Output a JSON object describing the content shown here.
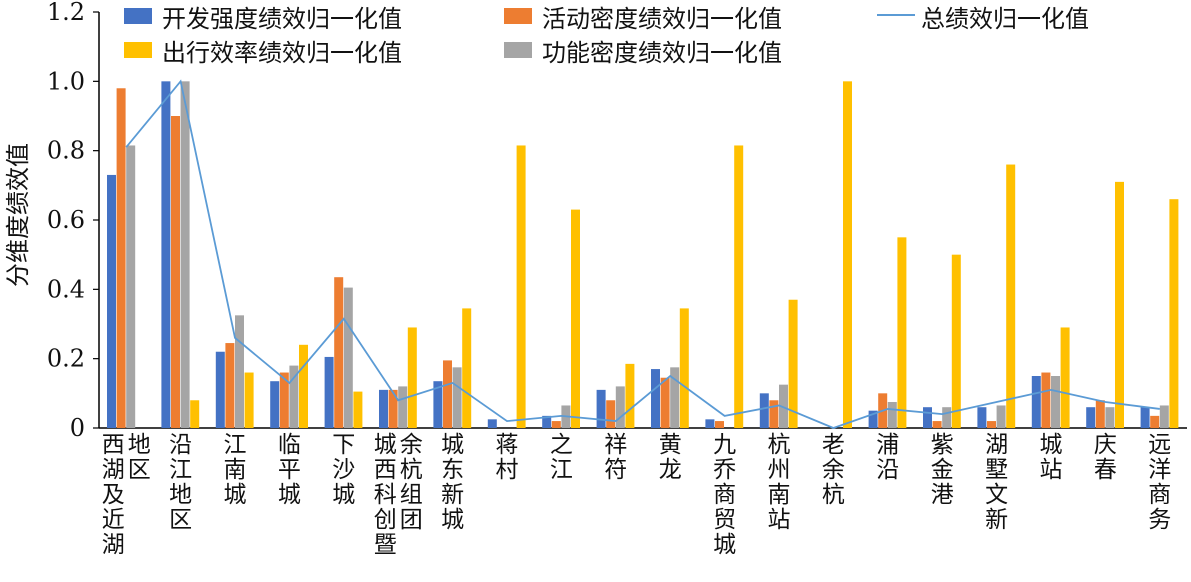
{
  "chart_data": {
    "type": "bar",
    "title": "",
    "xlabel": "",
    "ylabel": "分维度绩效值",
    "ylim": [
      0,
      1.2
    ],
    "yticks": [
      "0",
      "0.2",
      "0.4",
      "0.6",
      "0.8",
      "1.0",
      "1.2"
    ],
    "grid": false,
    "legend_position": "top",
    "categories": [
      "西湖及近湖地区",
      "沿江地区",
      "江南城",
      "临平城",
      "下沙城",
      "城西科创暨余杭组团",
      "城东新城",
      "蒋村",
      "之江",
      "祥符",
      "黄龙",
      "九乔商贸城",
      "杭州南站",
      "老余杭",
      "浦沿",
      "紫金港",
      "湖墅文新",
      "城站",
      "庆春",
      "远洋商务"
    ],
    "series": [
      {
        "name": "开发强度绩效归一化值",
        "type": "bar",
        "color": "#4472c4",
        "values": [
          0.73,
          1.0,
          0.22,
          0.135,
          0.205,
          0.11,
          0.135,
          0.025,
          0.035,
          0.11,
          0.17,
          0.025,
          0.1,
          0.0,
          0.05,
          0.06,
          0.06,
          0.15,
          0.06,
          0.06
        ]
      },
      {
        "name": "活动密度绩效归一化值",
        "type": "bar",
        "color": "#ed7d31",
        "values": [
          0.98,
          0.9,
          0.245,
          0.16,
          0.435,
          0.11,
          0.195,
          0.0,
          0.02,
          0.08,
          0.145,
          0.02,
          0.08,
          0.0,
          0.1,
          0.02,
          0.02,
          0.16,
          0.08,
          0.035
        ]
      },
      {
        "name": "功能密度绩效归一化值",
        "type": "bar",
        "color": "#a5a5a5",
        "values": [
          0.815,
          1.0,
          0.325,
          0.18,
          0.405,
          0.12,
          0.175,
          0.0,
          0.065,
          0.12,
          0.175,
          0.0,
          0.125,
          0.0,
          0.075,
          0.06,
          0.065,
          0.15,
          0.06,
          0.065
        ]
      },
      {
        "name": "出行效率绩效归一化值",
        "type": "bar",
        "color": "#ffc000",
        "values": [
          0.0,
          0.08,
          0.16,
          0.24,
          0.105,
          0.29,
          0.345,
          0.815,
          0.63,
          0.185,
          0.345,
          0.815,
          0.37,
          1.0,
          0.55,
          0.5,
          0.76,
          0.29,
          0.71,
          0.66
        ]
      },
      {
        "name": "总绩效归一化值",
        "type": "line",
        "color": "#5b9bd5",
        "values": [
          0.81,
          1.0,
          0.26,
          0.13,
          0.315,
          0.08,
          0.13,
          0.02,
          0.035,
          0.02,
          0.15,
          0.035,
          0.065,
          0.0,
          0.055,
          0.04,
          0.075,
          0.11,
          0.075,
          0.055
        ]
      }
    ]
  }
}
